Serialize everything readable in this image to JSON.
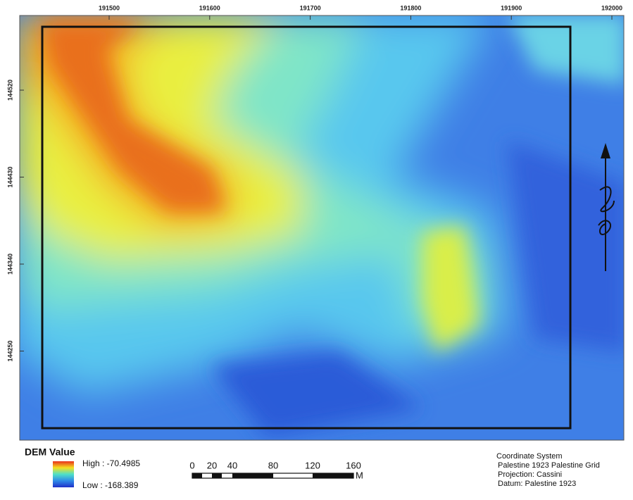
{
  "map": {
    "x_ticks": [
      "191500",
      "191600",
      "191700",
      "191800",
      "191900",
      "192000"
    ],
    "y_ticks": [
      "144520",
      "144430",
      "144340",
      "144250"
    ],
    "legend": {
      "title": "DEM Value",
      "high": "High : -70.4985",
      "low": "Low : -168.389"
    },
    "scale_bar": {
      "labels": [
        "0",
        "20",
        "40",
        "80",
        "120",
        "160"
      ],
      "unit": "M"
    },
    "info": [
      "Coordinate System",
      "Palestine 1923 Palestine Grid",
      "Projection: Cassini",
      "Datum: Palestine 1923"
    ]
  }
}
